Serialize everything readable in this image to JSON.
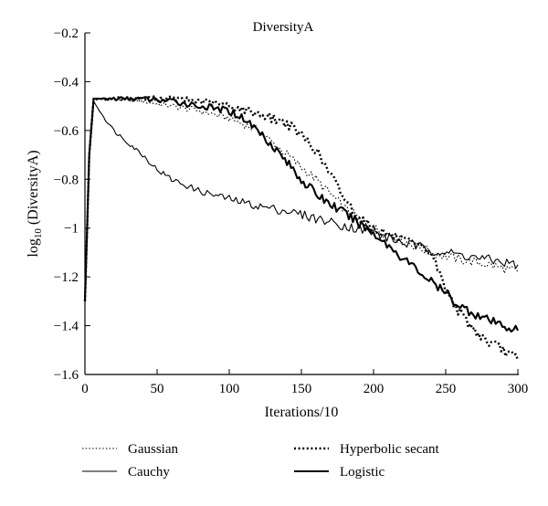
{
  "chart_data": {
    "type": "line",
    "title": "DiversityA",
    "xlabel": "Iterations/10",
    "ylabel": "log10 (DiversityA)",
    "ylabel_parts": {
      "pre": "log",
      "sub": "10",
      "post": " (DiversityA)"
    },
    "xlim": [
      0,
      300
    ],
    "ylim": [
      -1.6,
      -0.2
    ],
    "xticks": [
      0,
      50,
      100,
      150,
      200,
      250,
      300
    ],
    "xtick_labels": [
      "0",
      "50",
      "100",
      "150",
      "200",
      "250",
      "300"
    ],
    "yticks": [
      -1.6,
      -1.4,
      -1.2,
      -1.0,
      -0.8,
      -0.6,
      -0.4,
      -0.2
    ],
    "ytick_labels": [
      "−1.6",
      "−1.4",
      "−1.2",
      "−1",
      "−0.8",
      "−0.6",
      "−0.4",
      "−0.2"
    ],
    "grid": false,
    "legend_position": "bottom",
    "series": [
      {
        "name": "Gaussian",
        "style": "dotted-thin",
        "x": [
          0,
          3,
          6,
          10,
          20,
          40,
          60,
          80,
          100,
          120,
          140,
          160,
          180,
          200,
          220,
          240,
          260,
          280,
          300
        ],
        "values": [
          -1.3,
          -0.7,
          -0.48,
          -0.47,
          -0.47,
          -0.48,
          -0.5,
          -0.52,
          -0.55,
          -0.6,
          -0.7,
          -0.8,
          -0.92,
          -1.0,
          -1.05,
          -1.1,
          -1.13,
          -1.15,
          -1.18
        ]
      },
      {
        "name": "Cauchy",
        "style": "solid-thin",
        "x": [
          0,
          3,
          6,
          10,
          20,
          30,
          40,
          50,
          60,
          80,
          100,
          120,
          140,
          160,
          180,
          200,
          220,
          240,
          260,
          280,
          300
        ],
        "values": [
          -1.3,
          -0.7,
          -0.48,
          -0.52,
          -0.6,
          -0.65,
          -0.7,
          -0.76,
          -0.8,
          -0.85,
          -0.88,
          -0.91,
          -0.93,
          -0.96,
          -0.99,
          -1.02,
          -1.06,
          -1.09,
          -1.11,
          -1.13,
          -1.15
        ]
      },
      {
        "name": "Hyperbolic secant",
        "style": "dotted-thick",
        "x": [
          0,
          3,
          6,
          10,
          20,
          40,
          60,
          80,
          100,
          120,
          140,
          150,
          160,
          170,
          180,
          190,
          200,
          220,
          240,
          250,
          260,
          270,
          280,
          290,
          300
        ],
        "values": [
          -1.3,
          -0.7,
          -0.47,
          -0.47,
          -0.47,
          -0.47,
          -0.47,
          -0.48,
          -0.5,
          -0.53,
          -0.57,
          -0.62,
          -0.68,
          -0.78,
          -0.88,
          -0.96,
          -1.0,
          -1.05,
          -1.1,
          -1.25,
          -1.35,
          -1.42,
          -1.47,
          -1.5,
          -1.54
        ]
      },
      {
        "name": "Logistic",
        "style": "solid-thick",
        "x": [
          0,
          3,
          6,
          10,
          20,
          40,
          60,
          80,
          100,
          110,
          120,
          130,
          140,
          150,
          160,
          170,
          180,
          190,
          200,
          220,
          240,
          260,
          280,
          300
        ],
        "values": [
          -1.3,
          -0.7,
          -0.47,
          -0.47,
          -0.47,
          -0.47,
          -0.48,
          -0.5,
          -0.52,
          -0.55,
          -0.6,
          -0.66,
          -0.73,
          -0.8,
          -0.86,
          -0.9,
          -0.94,
          -0.98,
          -1.02,
          -1.12,
          -1.22,
          -1.32,
          -1.38,
          -1.42
        ]
      }
    ]
  }
}
